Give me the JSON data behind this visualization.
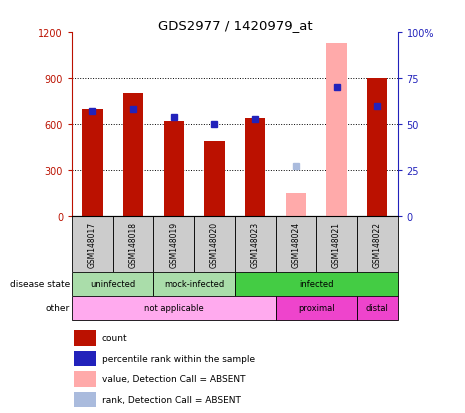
{
  "title": "GDS2977 / 1420979_at",
  "samples": [
    "GSM148017",
    "GSM148018",
    "GSM148019",
    "GSM148020",
    "GSM148023",
    "GSM148024",
    "GSM148021",
    "GSM148022"
  ],
  "count_values": [
    700,
    800,
    620,
    490,
    640,
    null,
    null,
    900
  ],
  "count_absent_values": [
    null,
    null,
    null,
    null,
    null,
    150,
    1130,
    null
  ],
  "percentile_values": [
    57,
    58,
    54,
    50,
    53,
    null,
    70,
    60
  ],
  "percentile_absent_values": [
    null,
    null,
    null,
    null,
    null,
    27,
    null,
    null
  ],
  "ylim_left": [
    0,
    1200
  ],
  "ylim_right": [
    0,
    100
  ],
  "yticks_left": [
    0,
    300,
    600,
    900,
    1200
  ],
  "yticks_right": [
    0,
    25,
    50,
    75,
    100
  ],
  "disease_groups": [
    {
      "label": "uninfected",
      "start": 0,
      "end": 2,
      "color": "#aaddaa"
    },
    {
      "label": "mock-infected",
      "start": 2,
      "end": 4,
      "color": "#aaddaa"
    },
    {
      "label": "infected",
      "start": 4,
      "end": 8,
      "color": "#44cc44"
    }
  ],
  "other_groups": [
    {
      "label": "not applicable",
      "start": 0,
      "end": 5,
      "color": "#ffaaee"
    },
    {
      "label": "proximal",
      "start": 5,
      "end": 7,
      "color": "#ee44cc"
    },
    {
      "label": "distal",
      "start": 7,
      "end": 8,
      "color": "#ee44cc"
    }
  ],
  "bar_color_red": "#bb1100",
  "bar_color_pink": "#ffaaaa",
  "dot_color_blue": "#2222bb",
  "dot_color_lightblue": "#aabbdd",
  "sample_bg_color": "#cccccc",
  "legend_items": [
    {
      "label": "count",
      "color": "#bb1100"
    },
    {
      "label": "percentile rank within the sample",
      "color": "#2222bb"
    },
    {
      "label": "value, Detection Call = ABSENT",
      "color": "#ffaaaa"
    },
    {
      "label": "rank, Detection Call = ABSENT",
      "color": "#aabbdd"
    }
  ]
}
